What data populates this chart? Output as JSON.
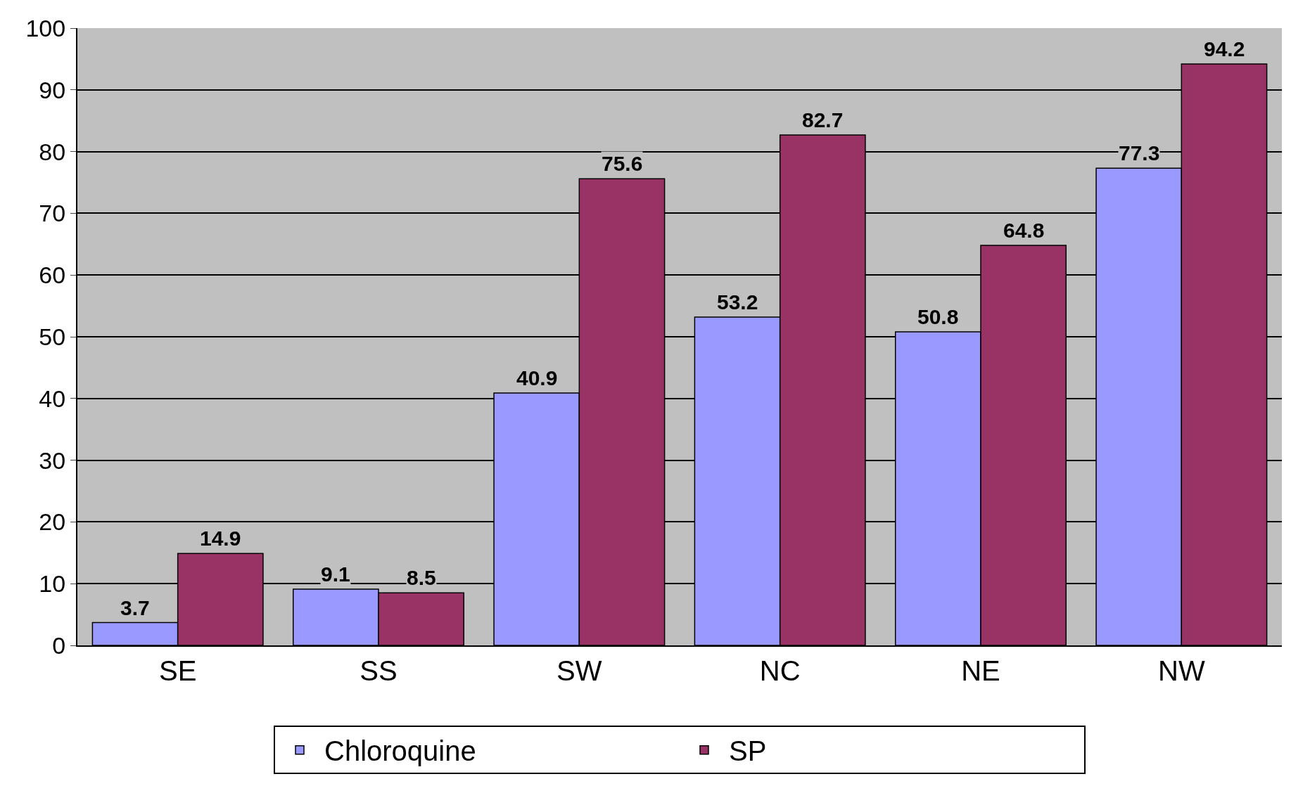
{
  "chart_data": {
    "type": "bar",
    "categories": [
      "SE",
      "SS",
      "SW",
      "NC",
      "NE",
      "NW"
    ],
    "series": [
      {
        "name": "Chloroquine",
        "color": "#9999ff",
        "values": [
          3.7,
          9.1,
          40.9,
          53.2,
          50.8,
          77.3
        ]
      },
      {
        "name": "SP",
        "color": "#993366",
        "values": [
          14.9,
          8.5,
          75.6,
          82.7,
          64.8,
          94.2
        ]
      }
    ],
    "ylim": [
      0,
      100
    ],
    "yticks": [
      0,
      10,
      20,
      30,
      40,
      50,
      60,
      70,
      80,
      90,
      100
    ],
    "grid": "y",
    "legend": "bottom",
    "data_labels": true
  }
}
